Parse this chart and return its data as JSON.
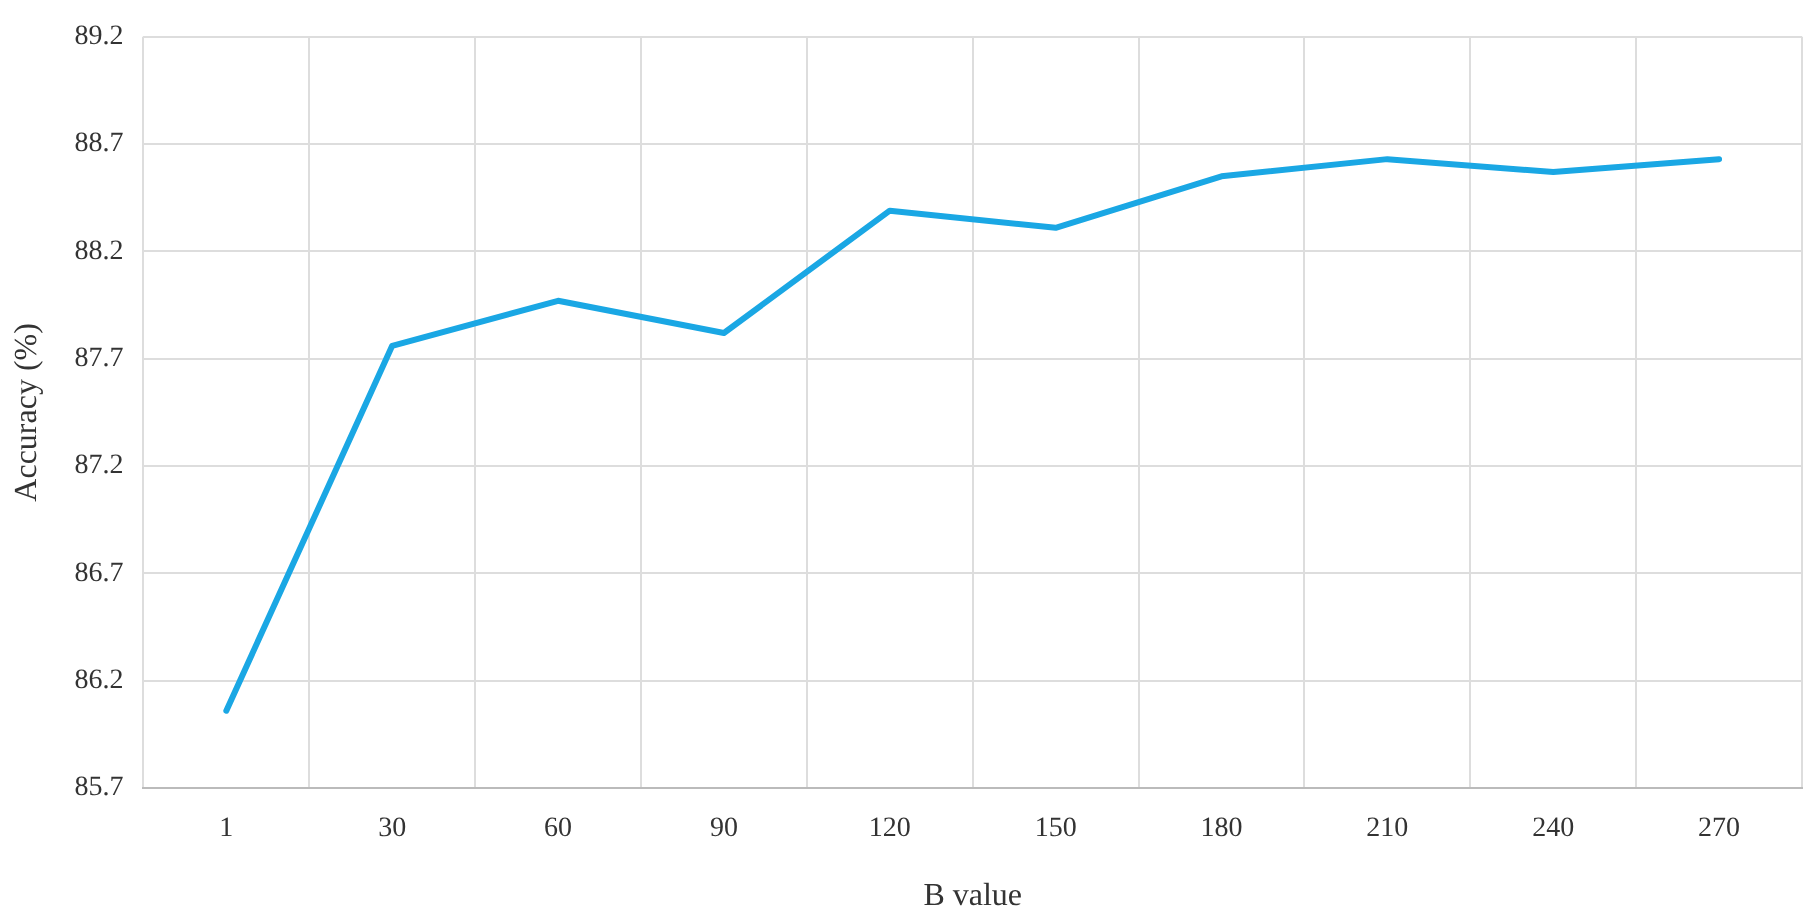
{
  "chart_data": {
    "type": "line",
    "xlabel": "B value",
    "ylabel": "Accuracy (%)",
    "categories": [
      "1",
      "30",
      "60",
      "90",
      "120",
      "150",
      "180",
      "210",
      "240",
      "270"
    ],
    "series": [
      {
        "color": "#1aa7e4",
        "values": [
          86.06,
          87.76,
          87.97,
          87.82,
          88.39,
          88.31,
          88.55,
          88.63,
          88.57,
          88.63
        ]
      }
    ],
    "ylim": [
      85.7,
      89.2
    ],
    "yticks": [
      85.7,
      86.2,
      86.7,
      87.2,
      87.7,
      88.2,
      88.7,
      89.2
    ],
    "grid": true,
    "legend": false,
    "marker": "none",
    "line_style": "solid"
  }
}
